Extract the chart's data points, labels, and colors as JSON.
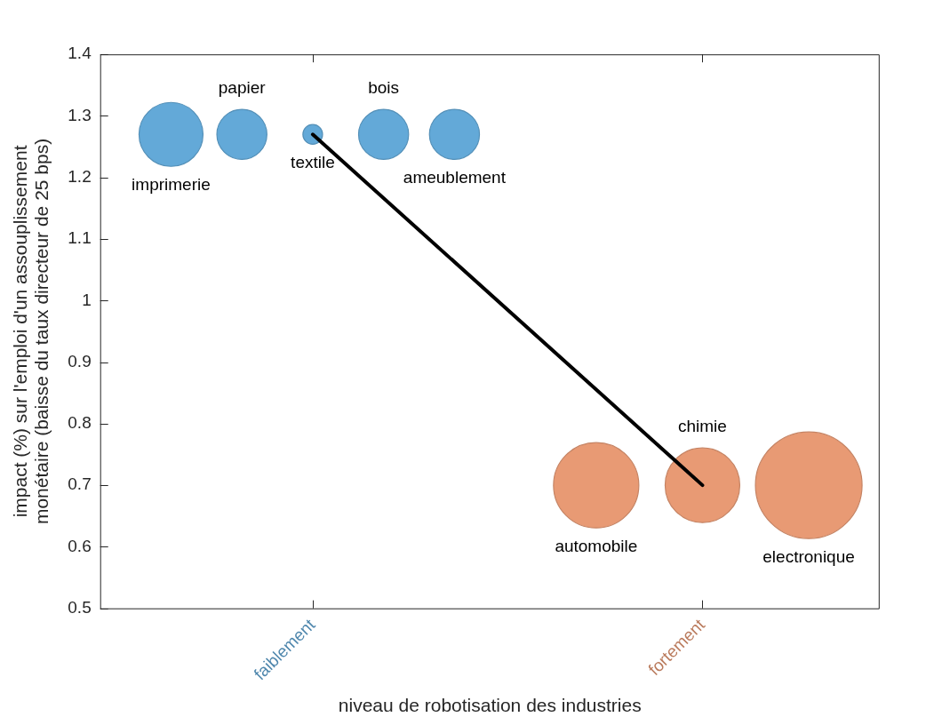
{
  "chart_data": {
    "type": "bubble",
    "xlabel": "niveau de robotisation des industries",
    "ylabel": "impact (%) sur l'emploi d'un assouplissement\nmonétaire (baisse du taux directeur de 25 bps)",
    "categories": [
      null,
      null,
      null,
      null,
      null,
      null,
      "faiblement",
      null,
      null,
      null,
      null,
      null,
      null,
      null,
      null,
      null,
      null,
      "fortement",
      null,
      null,
      null,
      null,
      null
    ],
    "ylim": [
      0.5,
      1.4
    ],
    "yticks": [
      0.5,
      0.6,
      0.7,
      0.8,
      0.9,
      1,
      1.1,
      1.2,
      1.3,
      1.4
    ],
    "series": [
      {
        "color": "#63a9d8",
        "values": [
          null,
          null,
          1.27,
          null,
          1.27,
          null,
          1.27,
          null,
          1.27,
          null,
          1.27,
          null,
          null,
          null,
          null,
          null,
          null,
          null,
          null,
          null,
          null,
          null,
          null
        ],
        "sizes": [
          null,
          null,
          0.36,
          null,
          0.22,
          null,
          0.034,
          null,
          0.22,
          null,
          0.22,
          null,
          null,
          null,
          null,
          null,
          null,
          null,
          null,
          null,
          null,
          null,
          null
        ],
        "value_labels": [
          null,
          null,
          "imprimerie",
          null,
          "papier",
          null,
          "textile",
          null,
          "bois",
          null,
          "ameublement",
          null,
          null,
          null,
          null,
          null,
          null,
          null,
          null,
          null,
          null,
          null,
          null
        ]
      },
      {
        "color": "#e89a74",
        "values": [
          null,
          null,
          null,
          null,
          null,
          null,
          null,
          null,
          null,
          null,
          null,
          null,
          null,
          null,
          0.7,
          null,
          null,
          0.7,
          null,
          null,
          0.7,
          null,
          null
        ],
        "sizes": [
          null,
          null,
          null,
          null,
          null,
          null,
          null,
          null,
          null,
          null,
          null,
          null,
          null,
          null,
          0.64,
          null,
          null,
          0.49,
          null,
          null,
          1,
          null,
          null
        ],
        "value_labels": [
          null,
          null,
          null,
          null,
          null,
          null,
          null,
          null,
          null,
          null,
          null,
          null,
          null,
          null,
          "automobile",
          null,
          null,
          "chimie",
          null,
          null,
          "electronique",
          null,
          null
        ]
      },
      {
        "type": "line",
        "color": "#000000",
        "values": [
          null,
          null,
          null,
          null,
          null,
          null,
          1.27,
          null,
          null,
          null,
          null,
          null,
          null,
          null,
          null,
          null,
          null,
          0.7,
          null,
          null,
          null,
          null,
          null
        ]
      }
    ]
  }
}
